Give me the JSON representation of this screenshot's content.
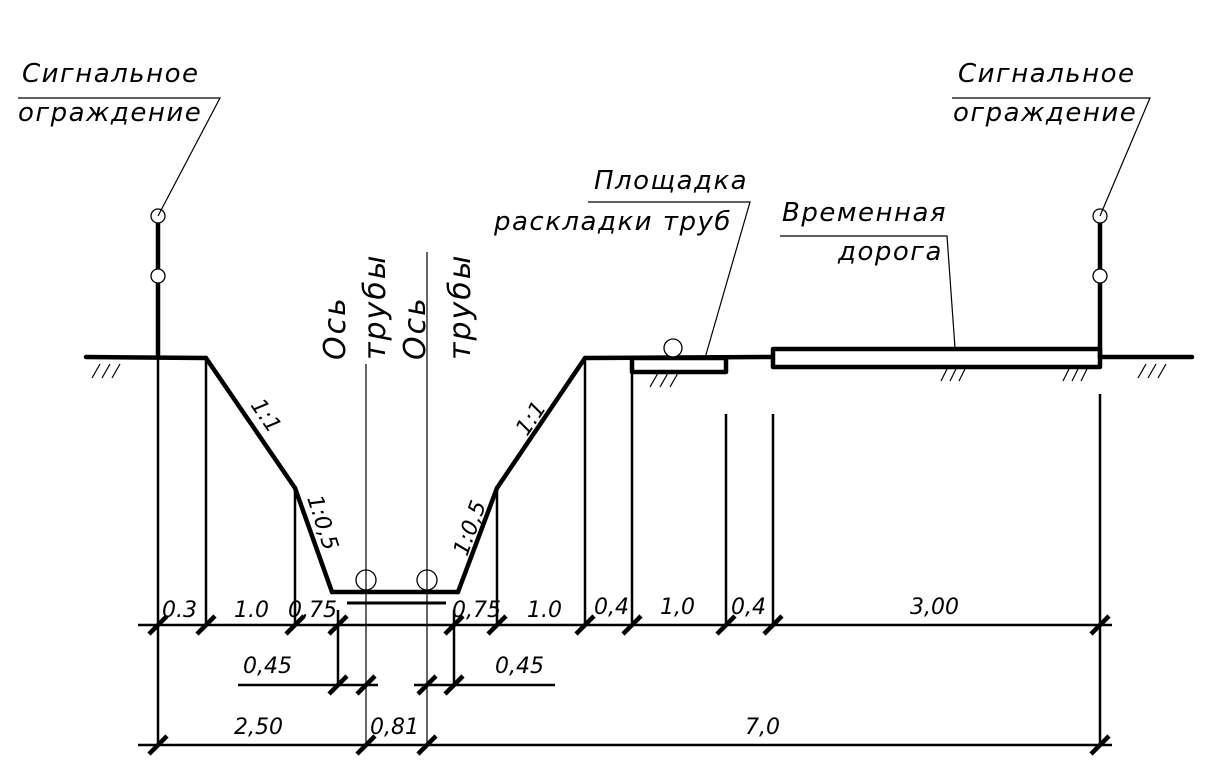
{
  "labels": {
    "fence_left_line1": "Сигнальное",
    "fence_left_line2": "ограждение",
    "fence_right_line1": "Сигнальное",
    "fence_right_line2": "ограждение",
    "pad_line1": "Площадка",
    "pad_line2": "раскладки труб",
    "road_line1": "Временная",
    "road_line2": "дорога",
    "axis1_word1": "Ось",
    "axis1_word2": "трубы",
    "axis2_word1": "Ось",
    "axis2_word2": "трубы"
  },
  "slopes": {
    "left_upper": "1:1",
    "left_lower": "1:0,5",
    "right_upper": "1:1",
    "right_lower": "1:0,5"
  },
  "dimensions": {
    "row1": [
      "0.3",
      "1.0",
      "0,75",
      "0,75",
      "1.0",
      "0,4",
      "1,0",
      "0,4",
      "3,00"
    ],
    "row2": [
      "0,45",
      "0,45"
    ],
    "row3": [
      "2,50",
      "0,81",
      "7,0"
    ]
  }
}
